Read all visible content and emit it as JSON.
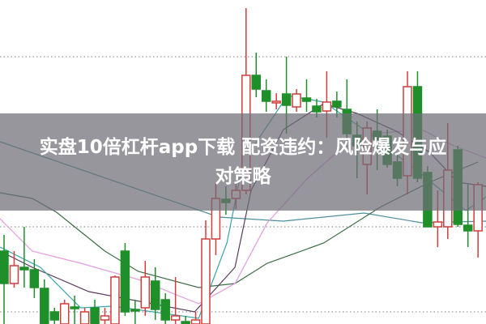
{
  "banner": {
    "title_line1": "实盘10倍杠杆app下载 配资违约：风险爆发与应",
    "title_line2": "对策略"
  },
  "chart_data": {
    "type": "candlestick",
    "title": "",
    "xlabel": "",
    "ylabel": "",
    "ylim": [
      5,
      45
    ],
    "grid": "horizontal dotted",
    "legend": "none",
    "colors": {
      "up": "#d23c3c",
      "down": "#1f8f2a",
      "grid": "#999999",
      "banner": "#6e6e76"
    },
    "candles": [
      [
        14,
        10,
        16,
        5
      ],
      [
        10,
        12.2,
        14,
        9.5
      ],
      [
        12,
        11.7,
        17,
        9.5
      ],
      [
        11.7,
        9.5,
        13,
        8.2
      ],
      [
        9.4,
        5,
        10.5,
        5
      ],
      [
        6.5,
        5.5,
        7,
        5
      ],
      [
        5,
        7.5,
        8,
        5
      ],
      [
        7.1,
        6.9,
        8.5,
        5
      ],
      [
        5,
        6.5,
        7,
        5
      ],
      [
        7,
        5,
        8,
        5
      ],
      [
        5.5,
        6,
        7,
        5
      ],
      [
        5,
        10.8,
        11,
        5
      ],
      [
        14,
        6.5,
        15,
        6
      ],
      [
        6.8,
        6.6,
        8,
        5
      ],
      [
        7,
        10.8,
        12.8,
        6
      ],
      [
        10.3,
        6.8,
        12,
        5.5
      ],
      [
        8,
        5.5,
        8.8,
        5
      ],
      [
        5.5,
        6,
        10.8,
        5
      ],
      [
        5.3,
        5,
        6,
        5
      ],
      [
        5,
        5.5,
        6.5,
        5
      ],
      [
        5,
        15.5,
        17.8,
        5
      ],
      [
        15.5,
        20.5,
        22.5,
        13.5
      ],
      [
        20.4,
        20,
        22,
        18.5
      ],
      [
        20.5,
        21.5,
        22.5,
        19.2
      ],
      [
        21.5,
        35.7,
        44,
        21
      ],
      [
        35.7,
        34,
        38.5,
        33
      ],
      [
        33.8,
        32.5,
        35.2,
        31.2
      ],
      [
        32.3,
        32.5,
        33.5,
        31.5
      ],
      [
        33.4,
        32,
        38,
        28.5
      ],
      [
        31.8,
        33.4,
        34,
        31.2
      ],
      [
        32.9,
        32.5,
        35.2,
        31.2
      ],
      [
        31.9,
        31.2,
        32.8,
        30.5
      ],
      [
        31.3,
        32.4,
        36.2,
        28
      ],
      [
        32.5,
        31.8,
        33.7,
        30.5
      ],
      [
        31.5,
        28.5,
        35.2,
        27.5
      ],
      [
        28.3,
        27,
        30,
        23
      ],
      [
        24.7,
        29.2,
        30,
        21
      ],
      [
        28.8,
        27.8,
        31.5,
        24
      ],
      [
        28.2,
        24.7,
        29,
        24.3
      ],
      [
        25,
        23,
        26,
        22
      ],
      [
        23.3,
        34.3,
        36.2,
        21
      ],
      [
        34.3,
        23,
        36.2,
        22.5
      ],
      [
        23.7,
        17,
        24.5,
        17
      ],
      [
        17,
        17.6,
        21.5,
        14.5
      ],
      [
        17,
        24,
        29.8,
        15.5
      ],
      [
        26.5,
        17.3,
        27,
        17
      ],
      [
        17.2,
        16.5,
        22.2,
        14.5
      ],
      [
        16.5,
        22.2,
        22.5,
        13.2
      ]
    ],
    "candle_fields": [
      "open",
      "close",
      "high",
      "low"
    ],
    "gridlines": [
      38,
      17,
      6.5
    ],
    "moving_averages": [
      {
        "color": "#4f8e9c",
        "points": [
          [
            -0.4,
            27.5
          ],
          [
            21.3,
            18.2
          ],
          [
            27.7,
            17.7
          ],
          [
            35.7,
            18.7
          ],
          [
            41.4,
            17.5
          ],
          [
            47.8,
            17.7
          ]
        ]
      },
      {
        "color": "#3d6e45",
        "points": [
          [
            -0.4,
            21.2
          ],
          [
            2.8,
            20.5
          ],
          [
            5.2,
            18.8
          ],
          [
            10,
            14
          ],
          [
            13.3,
            11.5
          ],
          [
            19.3,
            9.5
          ],
          [
            22.9,
            10
          ],
          [
            26.1,
            12.5
          ],
          [
            31.7,
            15
          ],
          [
            37.4,
            19.5
          ],
          [
            42.2,
            22.5
          ],
          [
            47,
            25
          ]
        ]
      },
      {
        "color": "#e39be0",
        "points": [
          [
            -0.4,
            18
          ],
          [
            2.8,
            14
          ],
          [
            7.6,
            12.5
          ],
          [
            13.3,
            10.5
          ],
          [
            19.3,
            7.5
          ],
          [
            22.9,
            10
          ],
          [
            26.1,
            17.5
          ],
          [
            30.1,
            23
          ],
          [
            33.3,
            26.5
          ],
          [
            36.5,
            28.5
          ],
          [
            41.4,
            29
          ],
          [
            44.6,
            27
          ],
          [
            47.8,
            25.5
          ]
        ]
      },
      {
        "color": "#5a3a5e",
        "points": [
          [
            -0.4,
            14
          ],
          [
            2.8,
            12
          ],
          [
            8.4,
            9
          ],
          [
            18.9,
            6.5
          ],
          [
            22.9,
            12
          ],
          [
            24.5,
            21.5
          ],
          [
            27.7,
            29
          ],
          [
            31.7,
            32.2
          ],
          [
            35,
            31
          ],
          [
            38.9,
            28.8
          ],
          [
            42.2,
            26.2
          ],
          [
            45,
            22.5
          ],
          [
            47.8,
            22
          ]
        ]
      },
      {
        "color": "#3aa3a8",
        "points": [
          [
            -0.4,
            14.5
          ],
          [
            3.6,
            12
          ],
          [
            7.6,
            7
          ],
          [
            10.8,
            7.2
          ],
          [
            19.3,
            5.7
          ],
          [
            22.1,
            15
          ],
          [
            23.7,
            25
          ],
          [
            28.1,
            33.2
          ],
          [
            31.7,
            32.4
          ],
          [
            35.7,
            29
          ],
          [
            41.4,
            23.5
          ],
          [
            45.8,
            19
          ],
          [
            47.8,
            20.7
          ]
        ]
      }
    ]
  }
}
